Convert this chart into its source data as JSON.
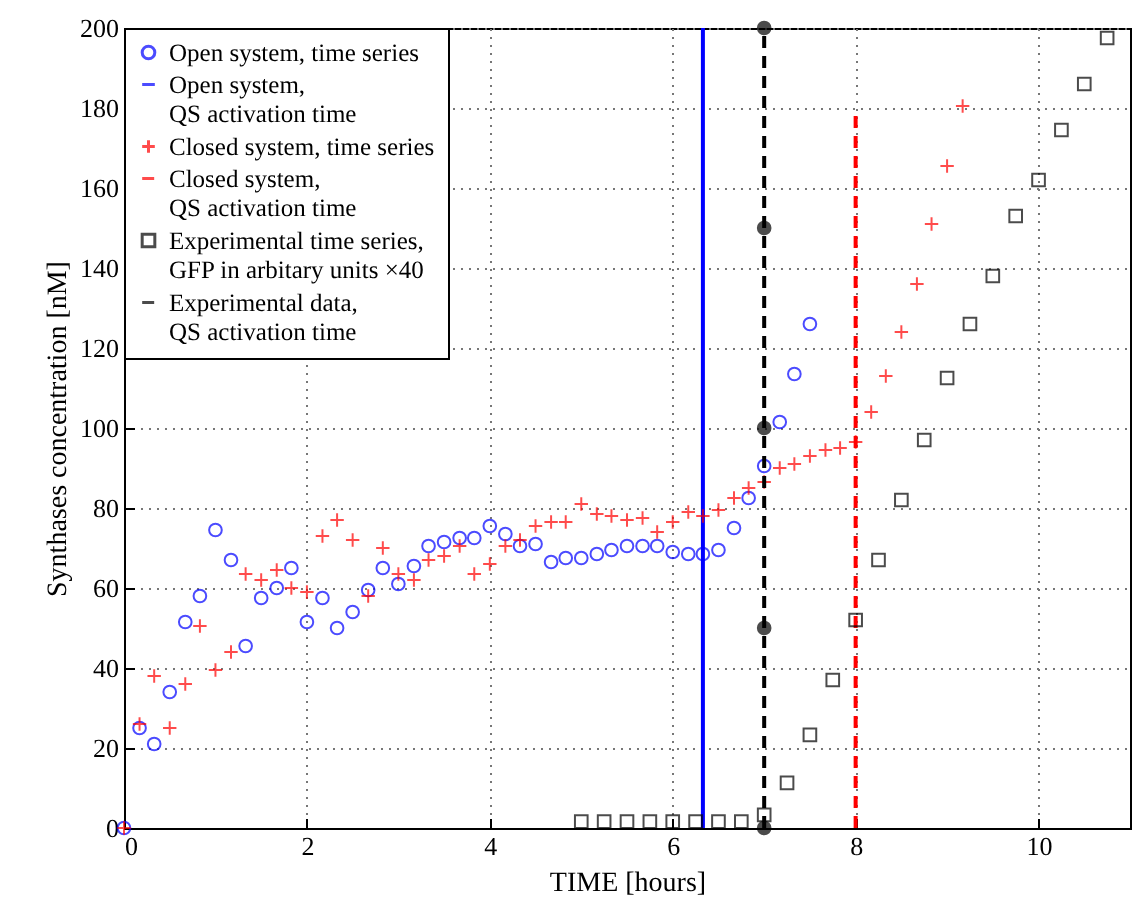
{
  "chart_data": {
    "type": "scatter",
    "xlabel": "TIME [hours]",
    "ylabel": "Synthases concentration [nM]",
    "xlim": [
      0,
      11
    ],
    "ylim": [
      0,
      200
    ],
    "xticks": [
      0,
      2,
      4,
      6,
      8,
      10
    ],
    "yticks": [
      0,
      20,
      40,
      60,
      80,
      100,
      120,
      140,
      160,
      180,
      200
    ],
    "grid": true,
    "legend": "top left",
    "series": [
      {
        "name": "Open system, time series",
        "marker": "circle",
        "color": "#0000ff",
        "x": [
          0,
          0.17,
          0.33,
          0.5,
          0.67,
          0.83,
          1,
          1.17,
          1.33,
          1.5,
          1.67,
          1.83,
          2,
          2.17,
          2.33,
          2.5,
          2.67,
          2.83,
          3,
          3.17,
          3.33,
          3.5,
          3.67,
          3.83,
          4,
          4.17,
          4.33,
          4.5,
          4.67,
          4.83,
          5,
          5.17,
          5.33,
          5.5,
          5.67,
          5.83,
          6,
          6.17,
          6.33,
          6.5,
          6.67,
          6.83,
          7,
          7.17,
          7.33,
          7.5
        ],
        "values": [
          0,
          25,
          21,
          34,
          51.5,
          58,
          74.5,
          67,
          45.5,
          57.5,
          60,
          65,
          51.5,
          57.5,
          50,
          54,
          59.5,
          65,
          61,
          65.5,
          70.5,
          71.5,
          72.5,
          72.5,
          75.5,
          73.5,
          70.5,
          71,
          66.5,
          67.5,
          67.5,
          68.5,
          69.5,
          70.5,
          70.5,
          70.5,
          69,
          68.5,
          68.5,
          69.5,
          75,
          82.5,
          90.5,
          101.5,
          113.5,
          126
        ]
      },
      {
        "name": "Open system, QS activation time",
        "type": "line",
        "line_style": "solid",
        "color": "#0000ff",
        "x": [
          6.33,
          6.33
        ],
        "values": [
          0,
          200
        ]
      },
      {
        "name": "Closed system, time series",
        "marker": "cross",
        "color": "#ff0000",
        "x": [
          0,
          0.17,
          0.33,
          0.5,
          0.67,
          0.83,
          1,
          1.17,
          1.33,
          1.5,
          1.67,
          1.83,
          2,
          2.17,
          2.33,
          2.5,
          2.67,
          2.83,
          3,
          3.17,
          3.33,
          3.5,
          3.67,
          3.83,
          4,
          4.17,
          4.33,
          4.5,
          4.67,
          4.83,
          5,
          5.17,
          5.33,
          5.5,
          5.67,
          5.83,
          6,
          6.17,
          6.33,
          6.5,
          6.67,
          6.83,
          7,
          7.17,
          7.33,
          7.5,
          7.67,
          7.83,
          8,
          8.17,
          8.33,
          8.5,
          8.67,
          8.83,
          9,
          9.17
        ],
        "values": [
          0,
          26,
          38,
          25,
          36,
          50.5,
          39.5,
          44,
          63.5,
          62,
          64.5,
          60,
          59,
          73,
          77,
          72,
          58,
          70,
          63.5,
          62,
          67,
          68,
          70.5,
          63.5,
          66,
          70.5,
          72,
          75.5,
          76.5,
          76.5,
          81,
          78.5,
          78,
          77,
          77.5,
          74,
          76.5,
          79,
          78,
          79.5,
          82.5,
          85,
          86.5,
          90,
          91,
          93,
          94.5,
          95,
          96.5,
          104,
          113,
          124,
          136,
          151,
          165.5,
          180.5
        ]
      },
      {
        "name": "Closed system, QS activation time",
        "type": "line",
        "line_style": "dashed",
        "color": "#ff0000",
        "x": [
          8,
          8
        ],
        "values": [
          0,
          180
        ]
      },
      {
        "name": "Experimental time series, GFP in arbitary units ×40",
        "marker": "square",
        "color": "#000000",
        "x": [
          5,
          5.25,
          5.5,
          5.75,
          6,
          6.25,
          6.5,
          6.75,
          7,
          7.25,
          7.5,
          7.75,
          8,
          8.25,
          8.5,
          8.75,
          9,
          9.25,
          9.5,
          9.75,
          10,
          10.25,
          10.5,
          10.75
        ],
        "values": [
          1.6,
          1.6,
          1.6,
          1.6,
          1.6,
          1.6,
          1.6,
          1.6,
          3.3,
          11.3,
          23.3,
          37,
          52,
          67,
          82,
          97,
          112.5,
          126,
          138,
          153,
          162,
          174.5,
          186,
          197.5
        ]
      },
      {
        "name": "Experimental data, QS activation time",
        "type": "line",
        "line_style": "dashed",
        "marker": "circle",
        "color": "#000000",
        "x": [
          7,
          7,
          7,
          7,
          7
        ],
        "values": [
          0,
          50,
          100,
          150,
          200
        ]
      }
    ]
  }
}
